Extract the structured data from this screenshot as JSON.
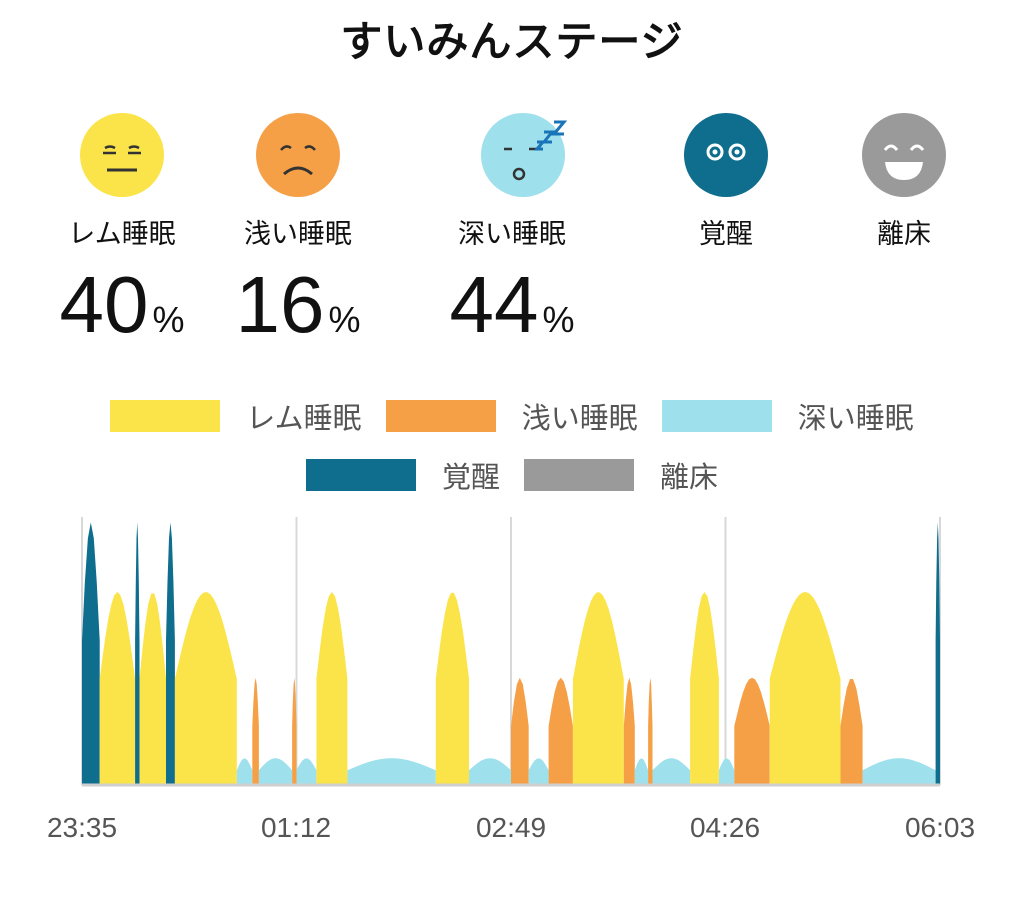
{
  "title": "すいみんステージ",
  "stages": [
    {
      "label": "レム睡眠",
      "value": "40",
      "unit": "%",
      "color": "#fbe44a",
      "icon": "neutral-face-icon"
    },
    {
      "label": "浅い睡眠",
      "value": "16",
      "unit": "%",
      "color": "#f5a047",
      "icon": "sad-face-icon"
    },
    {
      "label": "深い睡眠",
      "value": "44",
      "unit": "%",
      "color": "#9ee0ec",
      "icon": "sleeping-face-icon"
    },
    {
      "label": "覚醒",
      "color": "#0f6d8e",
      "icon": "awake-face-icon"
    },
    {
      "label": "離床",
      "color": "#9a9a9a",
      "icon": "happy-face-icon"
    }
  ],
  "chart_data": {
    "type": "area",
    "x_ticks": [
      "23:35",
      "01:12",
      "02:49",
      "04:26",
      "06:03"
    ],
    "legend": [
      {
        "name": "レム睡眠",
        "color": "#fbe44a"
      },
      {
        "name": "浅い睡眠",
        "color": "#f5a047"
      },
      {
        "name": "深い睡眠",
        "color": "#9ee0ec"
      },
      {
        "name": "覚醒",
        "color": "#0f6d8e"
      },
      {
        "name": "離床",
        "color": "#9a9a9a"
      }
    ],
    "segments": [
      {
        "stage": "覚醒",
        "start": 0,
        "end": 8
      },
      {
        "stage": "レム睡眠",
        "start": 8,
        "end": 24
      },
      {
        "stage": "覚醒",
        "start": 24,
        "end": 26
      },
      {
        "stage": "レム睡眠",
        "start": 26,
        "end": 38
      },
      {
        "stage": "覚醒",
        "start": 38,
        "end": 42
      },
      {
        "stage": "レム睡眠",
        "start": 42,
        "end": 70
      },
      {
        "stage": "深い睡眠",
        "start": 70,
        "end": 77
      },
      {
        "stage": "浅い睡眠",
        "start": 77,
        "end": 80
      },
      {
        "stage": "深い睡眠",
        "start": 80,
        "end": 95
      },
      {
        "stage": "浅い睡眠",
        "start": 95,
        "end": 97
      },
      {
        "stage": "深い睡眠",
        "start": 97,
        "end": 106
      },
      {
        "stage": "レム睡眠",
        "start": 106,
        "end": 120
      },
      {
        "stage": "深い睡眠",
        "start": 120,
        "end": 160
      },
      {
        "stage": "レム睡眠",
        "start": 160,
        "end": 175
      },
      {
        "stage": "深い睡眠",
        "start": 175,
        "end": 194
      },
      {
        "stage": "浅い睡眠",
        "start": 194,
        "end": 202
      },
      {
        "stage": "深い睡眠",
        "start": 202,
        "end": 211
      },
      {
        "stage": "浅い睡眠",
        "start": 211,
        "end": 222
      },
      {
        "stage": "レム睡眠",
        "start": 222,
        "end": 245
      },
      {
        "stage": "浅い睡眠",
        "start": 245,
        "end": 250
      },
      {
        "stage": "深い睡眠",
        "start": 250,
        "end": 256
      },
      {
        "stage": "浅い睡眠",
        "start": 256,
        "end": 258
      },
      {
        "stage": "深い睡眠",
        "start": 258,
        "end": 275
      },
      {
        "stage": "レム睡眠",
        "start": 275,
        "end": 288
      },
      {
        "stage": "深い睡眠",
        "start": 288,
        "end": 295
      },
      {
        "stage": "浅い睡眠",
        "start": 295,
        "end": 311
      },
      {
        "stage": "レム睡眠",
        "start": 311,
        "end": 343
      },
      {
        "stage": "浅い睡眠",
        "start": 343,
        "end": 353
      },
      {
        "stage": "深い睡眠",
        "start": 353,
        "end": 386
      },
      {
        "stage": "覚醒",
        "start": 386,
        "end": 388
      }
    ],
    "duration_min": 388,
    "grid_x": true
  }
}
